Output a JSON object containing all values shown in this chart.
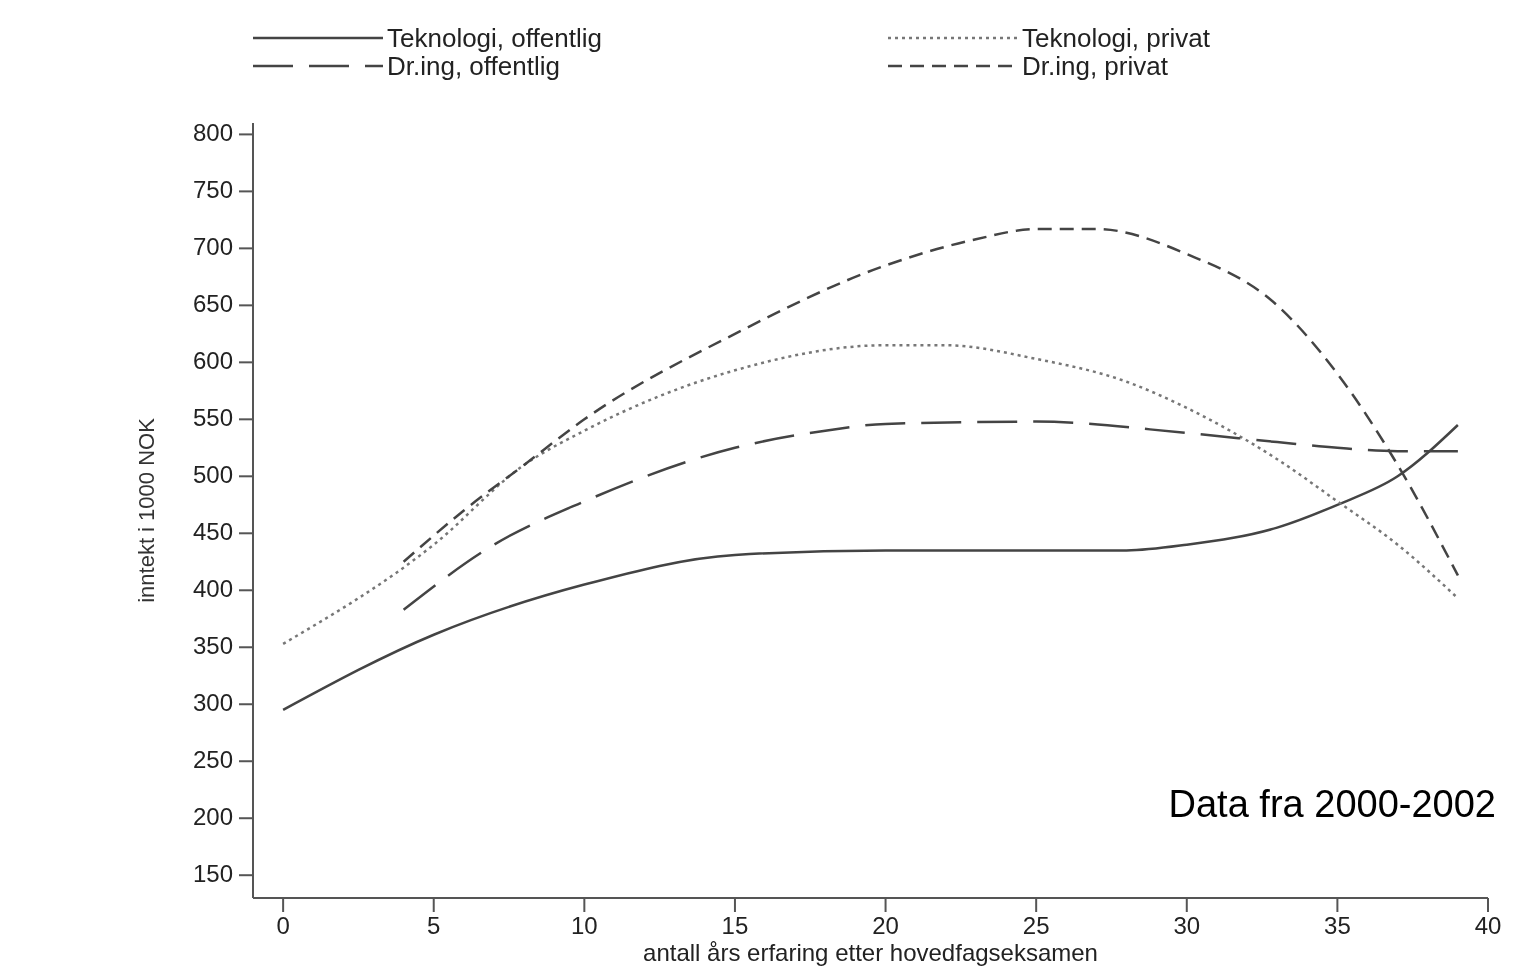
{
  "chart_data": {
    "type": "line",
    "xlabel": "antall års erfaring etter hovedfagseksamen",
    "ylabel": "inntekt i 1000 NOK",
    "xlim": [
      -1,
      40
    ],
    "xticks": [
      0,
      5,
      10,
      15,
      20,
      25,
      30,
      35,
      40
    ],
    "ylim": [
      130,
      810
    ],
    "yticks": [
      150,
      200,
      250,
      300,
      350,
      400,
      450,
      500,
      550,
      600,
      650,
      700,
      750,
      800
    ],
    "grid": false,
    "legend": "top",
    "annotations": [
      "Data fra 2000-2002"
    ],
    "series": [
      {
        "name": "Teknologi, offentlig",
        "color": "#444444",
        "line_style": "solid",
        "x": [
          0,
          5,
          10,
          15,
          20,
          25,
          28,
          30,
          33,
          35,
          37,
          39
        ],
        "values": [
          295,
          361,
          405,
          431,
          435,
          435,
          435,
          440,
          455,
          475,
          500,
          545
        ]
      },
      {
        "name": "Teknologi, privat",
        "color": "#777777",
        "line_style": "dotted",
        "x": [
          0,
          5,
          8,
          10,
          15,
          20,
          22,
          25,
          28,
          30,
          33,
          35,
          37,
          39
        ],
        "values": [
          353,
          440,
          510,
          540,
          593,
          615,
          615,
          603,
          583,
          560,
          515,
          478,
          440,
          393
        ]
      },
      {
        "name": "Dr.ing, offentlig",
        "color": "#444444",
        "line_style": "longdash",
        "x": [
          4,
          7,
          10,
          15,
          18,
          20,
          25,
          30,
          33,
          35,
          37,
          39
        ],
        "values": [
          383,
          440,
          478,
          525,
          540,
          546,
          548,
          538,
          530,
          525,
          522,
          522
        ]
      },
      {
        "name": "Dr.ing, privat",
        "color": "#444444",
        "line_style": "dashed",
        "x": [
          4,
          6,
          8,
          10,
          15,
          20,
          23,
          25,
          27,
          30,
          33,
          35,
          37,
          39
        ],
        "values": [
          425,
          470,
          510,
          550,
          625,
          685,
          708,
          717,
          717,
          695,
          650,
          590,
          510,
          413
        ]
      }
    ]
  }
}
